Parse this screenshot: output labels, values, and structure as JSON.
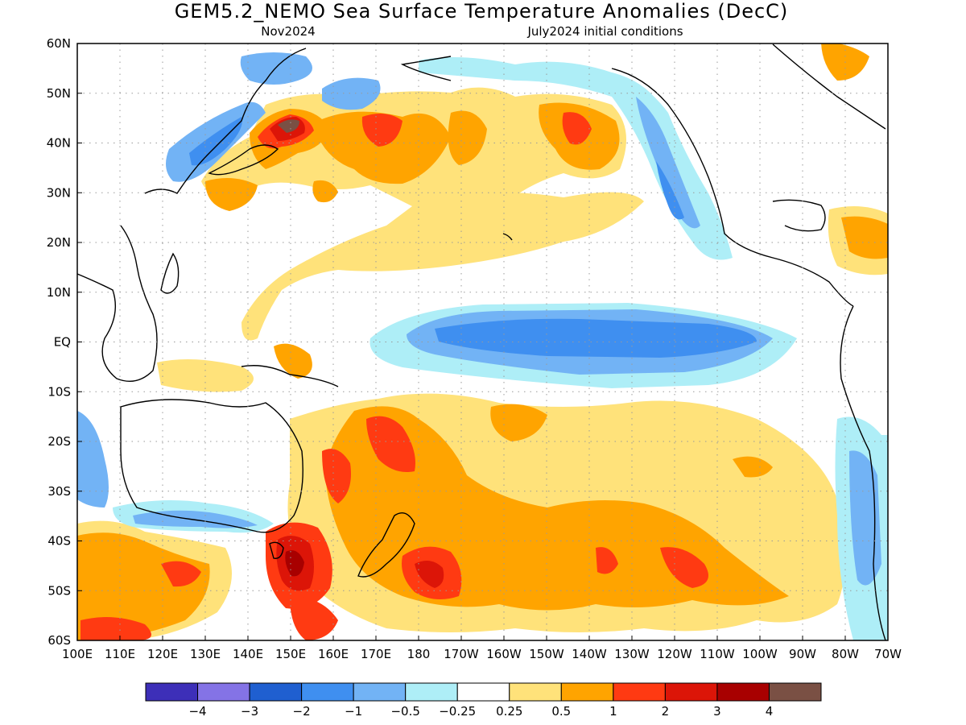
{
  "title": "GEM5.2_NEMO Sea Surface Temperature Anomalies (DecC)",
  "subtitle_left": "Nov2024",
  "subtitle_right": "July2024 initial conditions",
  "map": {
    "lon_range": [
      "100E",
      "70W"
    ],
    "lat_range": [
      "60S",
      "60N"
    ],
    "grid": "dotted",
    "x_ticks": [
      "100E",
      "110E",
      "120E",
      "130E",
      "140E",
      "150E",
      "160E",
      "170E",
      "180",
      "170W",
      "160W",
      "150W",
      "140W",
      "130W",
      "120W",
      "110W",
      "100W",
      "90W",
      "80W",
      "70W"
    ],
    "y_ticks": [
      "60N",
      "50N",
      "40N",
      "30N",
      "20N",
      "10N",
      "EQ",
      "10S",
      "20S",
      "30S",
      "40S",
      "50S",
      "60S"
    ]
  },
  "colorbar": {
    "colors": [
      "#3d2fb8",
      "#8473e6",
      "#1f5fd0",
      "#3f8ff0",
      "#72b3f5",
      "#aeeef7",
      "#ffffff",
      "#ffe27a",
      "#ffa400",
      "#ff3a12",
      "#dc1508",
      "#a80000",
      "#7a5044"
    ],
    "labels": [
      "−4",
      "−3",
      "−2",
      "−1",
      "−0.5",
      "−0.25",
      "0.25",
      "0.5",
      "1",
      "2",
      "3",
      "4"
    ]
  },
  "colors": {
    "strong_cool": "#3f8ff0",
    "cool": "#72b3f5",
    "weak_cool": "#aeeef7",
    "weak_warm": "#ffe27a",
    "warm": "#ffa400",
    "strong_warm": "#ff3a12",
    "very_warm": "#dc1508",
    "extreme_warm": "#a80000",
    "max_warm": "#7a5044",
    "land_outline": "#000000"
  }
}
